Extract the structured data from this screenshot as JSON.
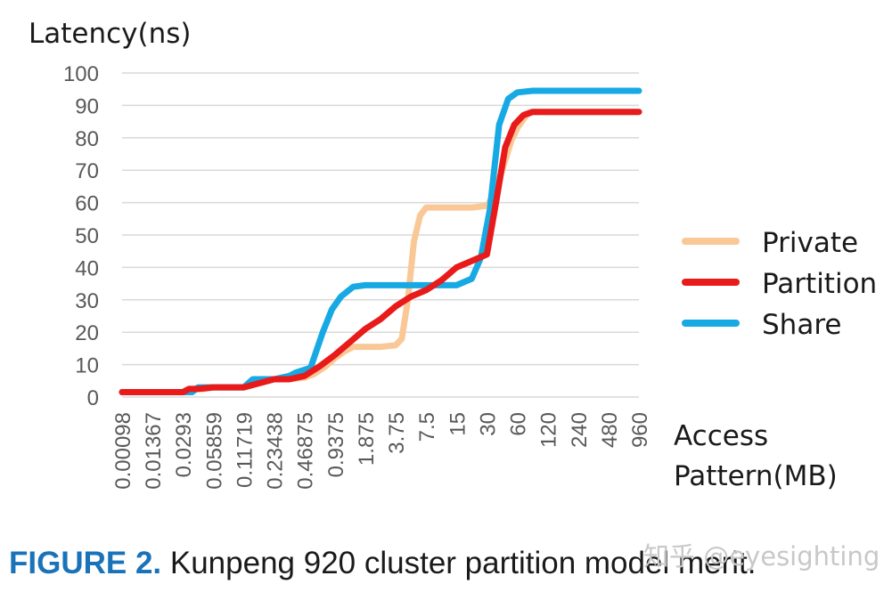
{
  "chart_data": {
    "type": "line",
    "title": "",
    "ylabel": "Latency(ns)",
    "xlabel": "Access Pattern(MB)",
    "xlabel_lines": [
      "Access",
      "Pattern(MB)"
    ],
    "ylim": [
      0,
      100
    ],
    "yticks": [
      0,
      10,
      20,
      30,
      40,
      50,
      60,
      70,
      80,
      90,
      100
    ],
    "grid": true,
    "legend_position": "right",
    "categories": [
      "0.00098",
      "0.01367",
      "0.0293",
      "0.05859",
      "0.11719",
      "0.23438",
      "0.46875",
      "0.9375",
      "1.875",
      "3.75",
      "7.5",
      "15",
      "30",
      "60",
      "120",
      "240",
      "480",
      "960"
    ],
    "x_range": [
      0,
      17
    ],
    "series": [
      {
        "name": "Private",
        "color": "#f9c896",
        "x": [
          0,
          2,
          2.3,
          2.7,
          3,
          3.5,
          4,
          5,
          5.5,
          6,
          6.3,
          6.7,
          7,
          7.3,
          7.6,
          8,
          8.5,
          9,
          9.2,
          9.4,
          9.6,
          9.8,
          10,
          10.3,
          10.6,
          11,
          11.5,
          12,
          12.2,
          12.5,
          12.8,
          13,
          13.3,
          13.5,
          14,
          17
        ],
        "y": [
          1.5,
          1.5,
          2.5,
          2.5,
          3,
          3,
          3,
          5.5,
          5.5,
          6,
          7,
          9.5,
          12,
          14,
          15.5,
          15.5,
          15.5,
          16,
          18,
          30,
          48,
          56,
          58.5,
          58.5,
          58.5,
          58.5,
          58.5,
          59,
          62,
          70,
          79,
          83,
          87,
          88,
          88,
          88
        ]
      },
      {
        "name": "Partition",
        "color": "#e81a1a",
        "x": [
          0,
          2,
          2.2,
          2.5,
          3,
          3.5,
          4,
          5,
          5.5,
          6,
          6.5,
          7,
          7.5,
          8,
          8.5,
          9,
          9.5,
          10,
          10.5,
          11,
          11.5,
          12,
          12.3,
          12.6,
          12.9,
          13.2,
          13.5,
          14,
          17
        ],
        "y": [
          1.5,
          1.5,
          2.5,
          2.5,
          3,
          3,
          3,
          5.5,
          5.5,
          6.5,
          9.5,
          13,
          17,
          21,
          24,
          28,
          31,
          33,
          36,
          40,
          42,
          44,
          60,
          77,
          84,
          87,
          88,
          88,
          88
        ]
      },
      {
        "name": "Share",
        "color": "#17a9e3",
        "x": [
          0,
          2.3,
          2.5,
          4,
          4.3,
          5,
          5.5,
          5.7,
          6.2,
          6.6,
          6.9,
          7.2,
          7.6,
          8,
          8.5,
          9,
          10,
          11,
          11.5,
          11.8,
          12.1,
          12.4,
          12.7,
          13,
          13.5,
          14,
          17
        ],
        "y": [
          1.5,
          1.5,
          3,
          3,
          5.5,
          5.5,
          6.5,
          7.5,
          9,
          20,
          27,
          31,
          34,
          34.5,
          34.5,
          34.5,
          34.5,
          34.5,
          36.5,
          43,
          58,
          84,
          92,
          94,
          94.5,
          94.5,
          94.5
        ]
      }
    ]
  },
  "caption": {
    "figure_label": "FIGURE 2.",
    "text": "Kunpeng 920 cluster partition model merit."
  },
  "watermark": "知乎 @eyesighting"
}
